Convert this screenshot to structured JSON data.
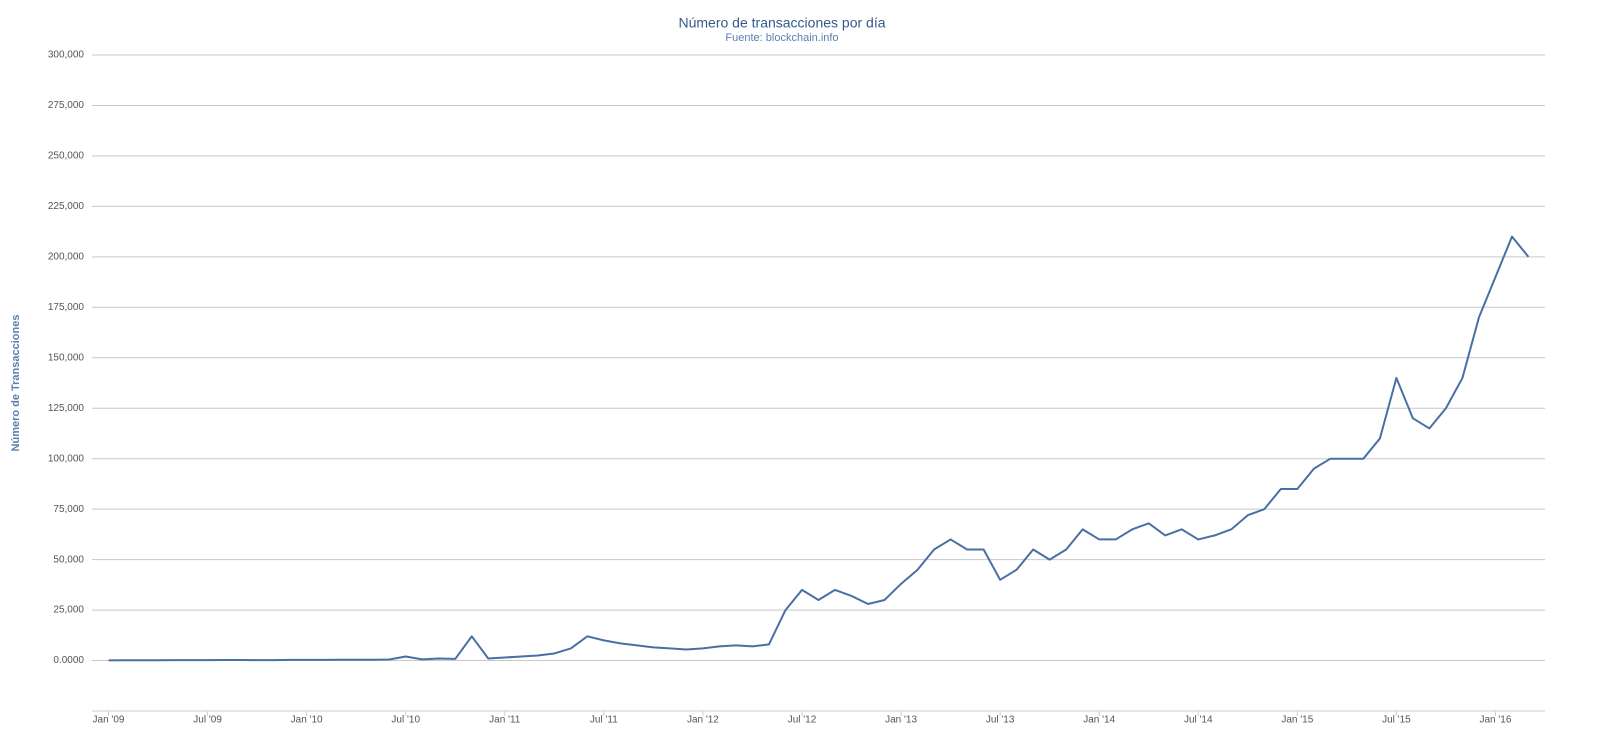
{
  "chart_data": {
    "type": "line",
    "title": "Número de transacciones por día",
    "subtitle": "Fuente: blockchain.info",
    "y_label": "Número de Transacciones",
    "x": [
      "2009-01",
      "2009-02",
      "2009-03",
      "2009-04",
      "2009-05",
      "2009-06",
      "2009-07",
      "2009-08",
      "2009-09",
      "2009-10",
      "2009-11",
      "2009-12",
      "2010-01",
      "2010-02",
      "2010-03",
      "2010-04",
      "2010-05",
      "2010-06",
      "2010-07",
      "2010-08",
      "2010-09",
      "2010-10",
      "2010-11",
      "2010-12",
      "2011-01",
      "2011-02",
      "2011-03",
      "2011-04",
      "2011-05",
      "2011-06",
      "2011-07",
      "2011-08",
      "2011-09",
      "2011-10",
      "2011-11",
      "2011-12",
      "2012-01",
      "2012-02",
      "2012-03",
      "2012-04",
      "2012-05",
      "2012-06",
      "2012-07",
      "2012-08",
      "2012-09",
      "2012-10",
      "2012-11",
      "2012-12",
      "2013-01",
      "2013-02",
      "2013-03",
      "2013-04",
      "2013-05",
      "2013-06",
      "2013-07",
      "2013-08",
      "2013-09",
      "2013-10",
      "2013-11",
      "2013-12",
      "2014-01",
      "2014-02",
      "2014-03",
      "2014-04",
      "2014-05",
      "2014-06",
      "2014-07",
      "2014-08",
      "2014-09",
      "2014-10",
      "2014-11",
      "2014-12",
      "2015-01",
      "2015-02",
      "2015-03",
      "2015-04",
      "2015-05",
      "2015-06",
      "2015-07",
      "2015-08",
      "2015-09",
      "2015-10",
      "2015-11",
      "2015-12",
      "2016-01",
      "2016-02",
      "2016-03"
    ],
    "series": [
      {
        "name": "Transacciones",
        "color": "#4a6fa5",
        "values": [
          100,
          150,
          150,
          150,
          200,
          200,
          200,
          250,
          250,
          200,
          200,
          300,
          300,
          300,
          400,
          400,
          400,
          500,
          2000,
          600,
          1000,
          800,
          12000,
          1000,
          1500,
          2000,
          2500,
          3500,
          6000,
          12000,
          10000,
          8500,
          7500,
          6500,
          6000,
          5500,
          6000,
          7000,
          7500,
          7000,
          8000,
          25000,
          35000,
          30000,
          35000,
          32000,
          28000,
          30000,
          38000,
          45000,
          55000,
          60000,
          55000,
          55000,
          40000,
          45000,
          55000,
          50000,
          55000,
          65000,
          60000,
          60000,
          65000,
          68000,
          62000,
          65000,
          60000,
          62000,
          65000,
          72000,
          75000,
          85000,
          85000,
          95000,
          100000,
          100000,
          100000,
          110000,
          140000,
          120000,
          115000,
          125000,
          140000,
          170000,
          190000,
          210000,
          200000
        ]
      }
    ],
    "xlim": [
      "2008-12",
      "2016-04"
    ],
    "xticks": [
      {
        "value": "2009-01",
        "label": "Jan '09"
      },
      {
        "value": "2009-07",
        "label": "Jul '09"
      },
      {
        "value": "2010-01",
        "label": "Jan '10"
      },
      {
        "value": "2010-07",
        "label": "Jul '10"
      },
      {
        "value": "2011-01",
        "label": "Jan '11"
      },
      {
        "value": "2011-07",
        "label": "Jul '11"
      },
      {
        "value": "2012-01",
        "label": "Jan '12"
      },
      {
        "value": "2012-07",
        "label": "Jul '12"
      },
      {
        "value": "2013-01",
        "label": "Jan '13"
      },
      {
        "value": "2013-07",
        "label": "Jul '13"
      },
      {
        "value": "2014-01",
        "label": "Jan '14"
      },
      {
        "value": "2014-07",
        "label": "Jul '14"
      },
      {
        "value": "2015-01",
        "label": "Jan '15"
      },
      {
        "value": "2015-07",
        "label": "Jul '15"
      },
      {
        "value": "2016-01",
        "label": "Jan '16"
      }
    ],
    "ylim": [
      -25000,
      300000
    ],
    "yticks": [
      {
        "value": 0,
        "label": "0.0000"
      },
      {
        "value": 25000,
        "label": "25,000"
      },
      {
        "value": 50000,
        "label": "50,000"
      },
      {
        "value": 75000,
        "label": "75,000"
      },
      {
        "value": 100000,
        "label": "100,000"
      },
      {
        "value": 125000,
        "label": "125,000"
      },
      {
        "value": 150000,
        "label": "150,000"
      },
      {
        "value": 175000,
        "label": "175,000"
      },
      {
        "value": 200000,
        "label": "200,000"
      },
      {
        "value": 225000,
        "label": "225,000"
      },
      {
        "value": 250000,
        "label": "250,000"
      },
      {
        "value": 275000,
        "label": "275,000"
      },
      {
        "value": 300000,
        "label": "300,000"
      }
    ],
    "grid": true
  }
}
